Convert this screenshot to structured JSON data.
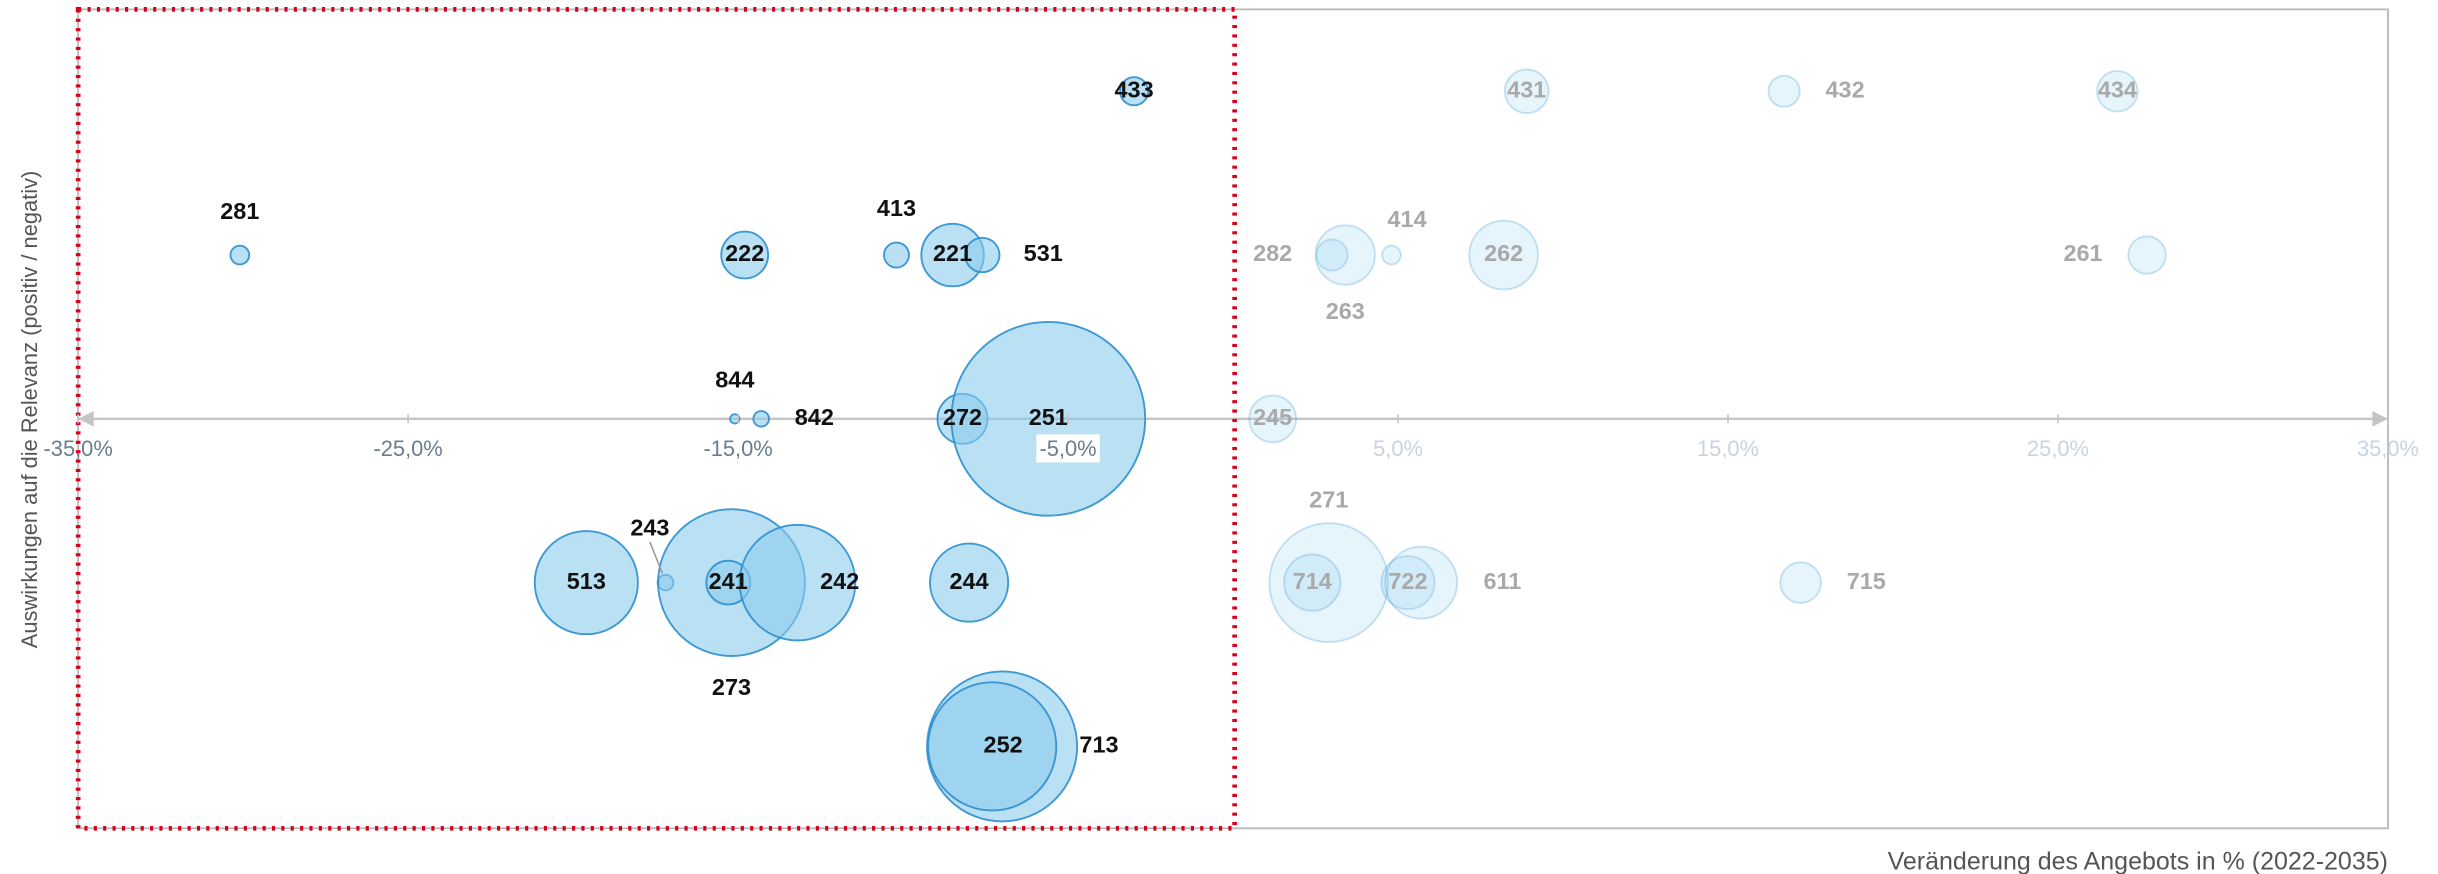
{
  "chart_data": {
    "type": "bubble",
    "x_label": "Veränderung des Angebots in % (2022-2035)",
    "y_label": "Auswirkungen auf die Relevanz (positiv / negativ)",
    "xlim": [
      -35,
      35
    ],
    "ylim": [
      -2.5,
      2.5
    ],
    "xticks": [
      {
        "value": -35,
        "label": "-35,0%"
      },
      {
        "value": -25,
        "label": "-25,0%"
      },
      {
        "value": -15,
        "label": "-15,0%"
      },
      {
        "value": -5,
        "label": "-5,0%"
      },
      {
        "value": 5,
        "label": "5,0%"
      },
      {
        "value": 15,
        "label": "15,0%"
      },
      {
        "value": 25,
        "label": "25,0%"
      },
      {
        "value": 35,
        "label": "35,0%"
      }
    ],
    "color": "#8ccbec",
    "edge_color": "#2d8fcf",
    "labels": [
      "433",
      "431",
      "432",
      "434",
      "281",
      "222",
      "413",
      "221",
      "531",
      "282",
      "263",
      "414",
      "262",
      "261",
      "844",
      "842",
      "272",
      "251",
      "245",
      "513",
      "243",
      "273",
      "241",
      "242",
      "244",
      "271",
      "714",
      "722",
      "611",
      "715",
      "713",
      "252"
    ],
    "x": [
      -3.0,
      8.9,
      16.7,
      26.8,
      -30.1,
      -14.8,
      -10.2,
      -8.5,
      -7.6,
      3.0,
      3.4,
      4.8,
      8.2,
      27.7,
      -15.1,
      -14.3,
      -8.2,
      -5.6,
      1.2,
      -19.6,
      -17.2,
      -15.2,
      -15.3,
      -13.2,
      -8.0,
      2.9,
      2.4,
      5.3,
      5.7,
      17.2,
      -7.0,
      -7.3
    ],
    "y": [
      2,
      2,
      2,
      2,
      1,
      1,
      1,
      1,
      1,
      1,
      1,
      1,
      1,
      1,
      0,
      0,
      0,
      0,
      0,
      -1,
      -1,
      -1,
      -1,
      -1,
      -1,
      -1,
      -1,
      -1,
      -1,
      -1,
      -2,
      -2
    ],
    "sizes": [
      9,
      14,
      10,
      13,
      6,
      15,
      8,
      20,
      11,
      10,
      19,
      6,
      22,
      12,
      3,
      5,
      16,
      62,
      15,
      33,
      5,
      47,
      14,
      37,
      25,
      38,
      18,
      17,
      23,
      13,
      48,
      41
    ]
  }
}
